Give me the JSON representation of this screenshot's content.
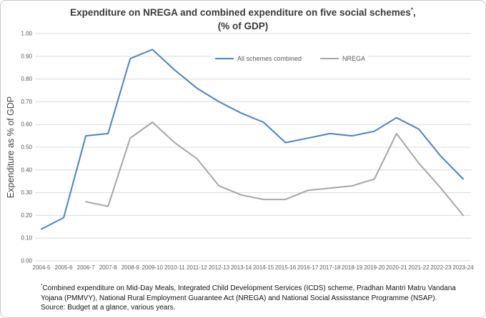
{
  "title": {
    "main": "Expenditure on NREGA and combined expenditure on five social schemes",
    "sup": "*",
    "comma": ",",
    "line2": "(% of GDP)"
  },
  "colors": {
    "background": "#ffffff",
    "frame_border": "#c9c9c9",
    "title_text": "#3b3b3b",
    "axis_text": "#595959",
    "gridline": "#dcdcdc",
    "footnote_text": "#141414",
    "all_schemes_line": "#4a82c6",
    "nrega_line": "#a6a6a6"
  },
  "chart_data": {
    "type": "line",
    "title": "Expenditure on NREGA and combined expenditure on five social schemes*, (% of GDP)",
    "xlabel": "",
    "ylabel": "Expenditure as % of GDP",
    "ylim": [
      0,
      1.0
    ],
    "ytick_step": 0.1,
    "grid": true,
    "legend_position": "top-center",
    "yticks": [
      "0.00",
      "0.10",
      "0.20",
      "0.30",
      "0.40",
      "0.50",
      "0.60",
      "0.70",
      "0.80",
      "0.90",
      "1.00"
    ],
    "categories": [
      "2004-5",
      "2005-6",
      "2006-7",
      "2007-8",
      "2008-9",
      "2009-10",
      "2010-11",
      "2011-12",
      "2012-13",
      "2013-14",
      "2014-15",
      "2015-16",
      "2016-17",
      "2017-18",
      "2018-19",
      "2019-20",
      "2020-21",
      "2021-22",
      "2022-23",
      "2023-24"
    ],
    "series": [
      {
        "name": "All schemes combined",
        "color": "#4a82c6",
        "values": [
          0.14,
          0.19,
          0.55,
          0.56,
          0.89,
          0.93,
          0.84,
          0.76,
          0.7,
          0.65,
          0.61,
          0.52,
          0.54,
          0.56,
          0.55,
          0.57,
          0.63,
          0.58,
          0.46,
          0.36
        ]
      },
      {
        "name": "NREGA",
        "color": "#a6a6a6",
        "values": [
          null,
          null,
          0.26,
          0.24,
          0.54,
          0.61,
          0.52,
          0.45,
          0.33,
          0.29,
          0.27,
          0.27,
          0.31,
          0.32,
          0.33,
          0.36,
          0.56,
          0.43,
          0.32,
          0.2
        ]
      }
    ]
  },
  "footnote": {
    "sup": "*",
    "body": "Combined expenditure on Mid-Day Meals, Integrated Child Development Services (ICDS) scheme, Pradhan Mantri Matru Vandana Yojana (PMMVY), National Rural Employment Guarantee Act (NREGA) and National Social Assisstance Programme (NSAP).",
    "source": "Source: Budget at a glance, various years."
  }
}
